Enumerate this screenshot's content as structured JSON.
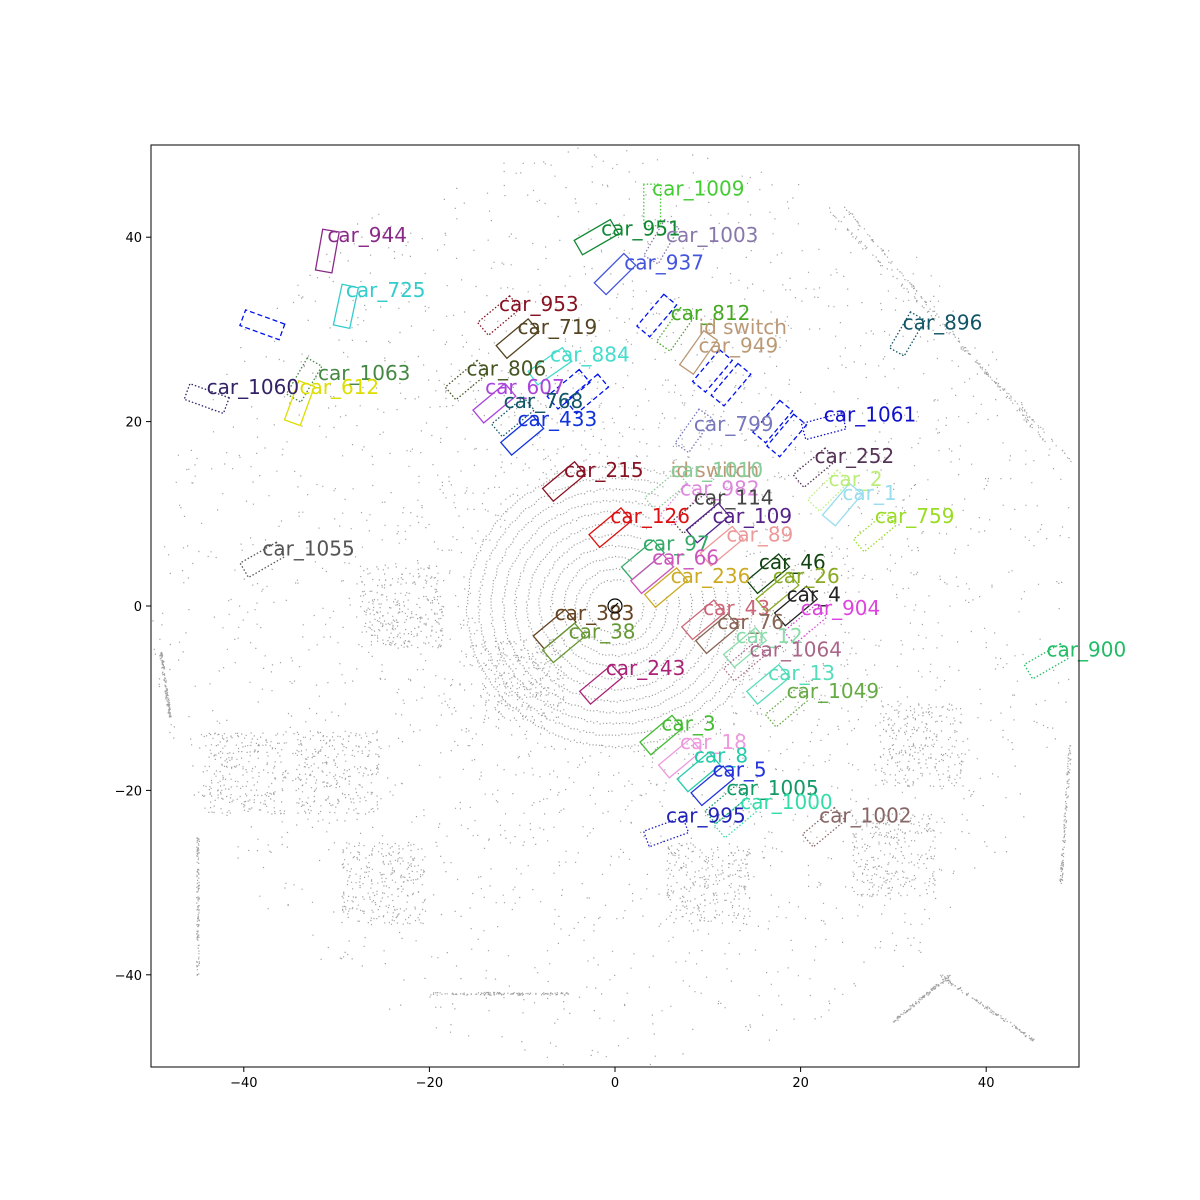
{
  "chart_data": {
    "type": "scatter",
    "title": "",
    "xlabel": "",
    "ylabel": "",
    "xlim": [
      -50,
      50
    ],
    "ylim": [
      -50,
      50
    ],
    "x_ticks": [
      -40,
      -20,
      0,
      20,
      40
    ],
    "y_ticks": [
      -40,
      -20,
      0,
      20,
      40
    ],
    "x_tick_labels": [
      "−40",
      "−20",
      "0",
      "20",
      "40"
    ],
    "y_tick_labels": [
      "−40",
      "−20",
      "0",
      "20",
      "40"
    ],
    "grid": false,
    "point_color": "#555555",
    "ego_marker": {
      "x": 0,
      "y": 0
    },
    "boxes": [
      {
        "label": "car_1009",
        "x": 4,
        "y": 43.5,
        "w": 1.8,
        "l": 4.5,
        "angle": 90,
        "color": "#44cc33",
        "style": "dotted"
      },
      {
        "label": "car_951",
        "x": -2,
        "y": 40,
        "w": 1.8,
        "l": 4.5,
        "angle": 30,
        "color": "#118833",
        "style": "solid"
      },
      {
        "label": "car_1003",
        "x": 5,
        "y": 39.5,
        "w": 1.8,
        "l": 4.5,
        "angle": 60,
        "color": "#8877aa",
        "style": "dotted"
      },
      {
        "label": "car_944",
        "x": -31,
        "y": 38.5,
        "w": 1.8,
        "l": 4.5,
        "angle": 80,
        "color": "#8a2a88",
        "style": "solid"
      },
      {
        "label": "car_937",
        "x": 0,
        "y": 36,
        "w": 1.8,
        "l": 4.5,
        "angle": 45,
        "color": "#4455dd",
        "style": "solid"
      },
      {
        "label": "car_725",
        "x": -29,
        "y": 32.5,
        "w": 1.8,
        "l": 4.5,
        "angle": 78,
        "color": "#33cccc",
        "style": "solid"
      },
      {
        "label": "",
        "x": -38,
        "y": 30.5,
        "w": 1.8,
        "l": 4.5,
        "angle": -20,
        "color": "#0011ee",
        "style": "dashed"
      },
      {
        "label": "car_953",
        "x": -12.5,
        "y": 31.5,
        "w": 1.8,
        "l": 4.5,
        "angle": 40,
        "color": "#881122",
        "style": "dotted"
      },
      {
        "label": "",
        "x": 4.5,
        "y": 31.5,
        "w": 1.8,
        "l": 4.5,
        "angle": 50,
        "color": "#0011ee",
        "style": "dashed"
      },
      {
        "label": "car_812",
        "x": 6.5,
        "y": 30,
        "w": 1.8,
        "l": 4.5,
        "angle": 55,
        "color": "#44aa22",
        "style": "dotted"
      },
      {
        "label": "car_896",
        "x": 31.5,
        "y": 29.5,
        "w": 1.8,
        "l": 4.5,
        "angle": 60,
        "color": "#115566",
        "style": "dotted"
      },
      {
        "label": "car_719",
        "x": -10.5,
        "y": 29,
        "w": 1.8,
        "l": 4.5,
        "angle": 40,
        "color": "#554422",
        "style": "solid"
      },
      {
        "label": "car_949",
        "x": 9,
        "y": 27.5,
        "w": 1.8,
        "l": 4.5,
        "angle": 55,
        "color": "#bb9977",
        "style": "solid"
      },
      {
        "label": "",
        "x": 10.5,
        "y": 25.5,
        "w": 1.8,
        "l": 4.5,
        "angle": 50,
        "color": "#0011ee",
        "style": "dashed"
      },
      {
        "label": "",
        "x": 12.5,
        "y": 24,
        "w": 1.8,
        "l": 4.5,
        "angle": 50,
        "color": "#0011ee",
        "style": "dashed"
      },
      {
        "label": "car_884",
        "x": -7,
        "y": 26,
        "w": 1.8,
        "l": 4.5,
        "angle": 35,
        "color": "#44ddcc",
        "style": "solid"
      },
      {
        "label": "car_806",
        "x": -16,
        "y": 24.5,
        "w": 1.8,
        "l": 4.5,
        "angle": 40,
        "color": "#445522",
        "style": "dotted"
      },
      {
        "label": "car_1063",
        "x": -33.5,
        "y": 24.5,
        "w": 1.8,
        "l": 4.5,
        "angle": 60,
        "color": "#448844",
        "style": "dotted"
      },
      {
        "label": "car_612",
        "x": -34,
        "y": 22,
        "w": 1.8,
        "l": 4.5,
        "angle": 70,
        "color": "#dddd00",
        "style": "solid"
      },
      {
        "label": "car_1060",
        "x": -44,
        "y": 22.5,
        "w": 1.8,
        "l": 4.5,
        "angle": -20,
        "color": "#332266",
        "style": "dotted"
      },
      {
        "label": "",
        "x": -5,
        "y": 23.5,
        "w": 1.8,
        "l": 4.5,
        "angle": 40,
        "color": "#0011ee",
        "style": "dashed"
      },
      {
        "label": "",
        "x": -3,
        "y": 23,
        "w": 1.8,
        "l": 4.5,
        "angle": 40,
        "color": "#0011ee",
        "style": "dashed"
      },
      {
        "label": "car_607",
        "x": -13,
        "y": 22,
        "w": 1.8,
        "l": 4.5,
        "angle": 40,
        "color": "#aa44dd",
        "style": "solid"
      },
      {
        "label": "car_768",
        "x": -11,
        "y": 20.5,
        "w": 1.8,
        "l": 4.5,
        "angle": 40,
        "color": "#115566",
        "style": "dotted"
      },
      {
        "label": "car_433",
        "x": -10,
        "y": 18.5,
        "w": 1.8,
        "l": 4.5,
        "angle": 40,
        "color": "#1133dd",
        "style": "solid"
      },
      {
        "label": "car_799",
        "x": 8.5,
        "y": 19,
        "w": 1.8,
        "l": 4.5,
        "angle": 55,
        "color": "#7777bb",
        "style": "dotted"
      },
      {
        "label": "",
        "x": 17,
        "y": 20,
        "w": 1.8,
        "l": 4.5,
        "angle": 50,
        "color": "#0011ee",
        "style": "dashed"
      },
      {
        "label": "",
        "x": 18.5,
        "y": 18.5,
        "w": 1.8,
        "l": 4.5,
        "angle": 50,
        "color": "#0011ee",
        "style": "dashed"
      },
      {
        "label": "car_1061",
        "x": 22.5,
        "y": 19.5,
        "w": 1.8,
        "l": 4.5,
        "angle": 15,
        "color": "#1111cc",
        "style": "dotted"
      },
      {
        "label": "car_215",
        "x": -5.5,
        "y": 13.5,
        "w": 1.8,
        "l": 4.5,
        "angle": 40,
        "color": "#881122",
        "style": "solid"
      },
      {
        "label": "car_252",
        "x": 21.5,
        "y": 15,
        "w": 1.8,
        "l": 4.5,
        "angle": 40,
        "color": "#553355",
        "style": "dotted"
      },
      {
        "label": "car_1010",
        "x": 5.5,
        "y": 12.5,
        "w": 1.8,
        "l": 4.5,
        "angle": 40,
        "color": "#88cc99",
        "style": "dotted"
      },
      {
        "label": "car_982",
        "x": 7,
        "y": 11,
        "w": 1.8,
        "l": 4.5,
        "angle": 50,
        "color": "#dd88dd",
        "style": "dotted"
      },
      {
        "label": "car_2",
        "x": 23,
        "y": 12.5,
        "w": 1.8,
        "l": 4.5,
        "angle": 45,
        "color": "#bbee77",
        "style": "dotted"
      },
      {
        "label": "car_1",
        "x": 24.5,
        "y": 11,
        "w": 1.8,
        "l": 4.5,
        "angle": 50,
        "color": "#99ddee",
        "style": "solid"
      },
      {
        "label": "car_114",
        "x": 8.5,
        "y": 10,
        "w": 1.8,
        "l": 4.5,
        "angle": 40,
        "color": "#444444",
        "style": "dotted"
      },
      {
        "label": "car_759",
        "x": 28,
        "y": 8,
        "w": 1.8,
        "l": 4.5,
        "angle": 40,
        "color": "#99dd22",
        "style": "dotted"
      },
      {
        "label": "car_126",
        "x": -0.5,
        "y": 8.5,
        "w": 1.8,
        "l": 4.5,
        "angle": 40,
        "color": "#dd1111",
        "style": "solid"
      },
      {
        "label": "car_109",
        "x": 10,
        "y": 9,
        "w": 1.8,
        "l": 4.5,
        "angle": 40,
        "color": "#552288",
        "style": "solid"
      },
      {
        "label": "car_89",
        "x": 11.5,
        "y": 6.5,
        "w": 1.8,
        "l": 4.5,
        "angle": 40,
        "color": "#ee9999",
        "style": "solid"
      },
      {
        "label": "car_97",
        "x": 3,
        "y": 5,
        "w": 1.8,
        "l": 4.5,
        "angle": 40,
        "color": "#33aa66",
        "style": "solid"
      },
      {
        "label": "car_66",
        "x": 4,
        "y": 3.5,
        "w": 1.8,
        "l": 4.5,
        "angle": 40,
        "color": "#cc55bb",
        "style": "solid"
      },
      {
        "label": "car_46",
        "x": 16.5,
        "y": 3.5,
        "w": 1.8,
        "l": 4.5,
        "angle": 40,
        "color": "#114411",
        "style": "solid"
      },
      {
        "label": "car_236",
        "x": 5.5,
        "y": 2,
        "w": 1.8,
        "l": 4.5,
        "angle": 40,
        "color": "#ccaa22",
        "style": "solid"
      },
      {
        "label": "car_26",
        "x": 17.5,
        "y": 1.5,
        "w": 1.8,
        "l": 4.5,
        "angle": 40,
        "color": "#88aa22",
        "style": "solid"
      },
      {
        "label": "car_4",
        "x": 19.5,
        "y": 0,
        "w": 1.8,
        "l": 4.5,
        "angle": 40,
        "color": "#222222",
        "style": "solid"
      },
      {
        "label": "car_904",
        "x": 20.5,
        "y": -2,
        "w": 1.8,
        "l": 4.5,
        "angle": 40,
        "color": "#dd44dd",
        "style": "dotted"
      },
      {
        "label": "car_43",
        "x": 9.5,
        "y": -1.5,
        "w": 1.8,
        "l": 4.5,
        "angle": 40,
        "color": "#cc6677",
        "style": "solid"
      },
      {
        "label": "car_76",
        "x": 11,
        "y": -3,
        "w": 1.8,
        "l": 4.5,
        "angle": 40,
        "color": "#886655",
        "style": "solid"
      },
      {
        "label": "car_383",
        "x": -6.5,
        "y": -2.5,
        "w": 1.8,
        "l": 4.5,
        "angle": 40,
        "color": "#664422",
        "style": "solid"
      },
      {
        "label": "car_38",
        "x": -5.5,
        "y": -4,
        "w": 1.8,
        "l": 4.5,
        "angle": 40,
        "color": "#669933",
        "style": "solid"
      },
      {
        "label": "car_12",
        "x": 14,
        "y": -4.5,
        "w": 1.8,
        "l": 4.5,
        "angle": 40,
        "color": "#88ddaa",
        "style": "solid"
      },
      {
        "label": "car_1064",
        "x": 14,
        "y": -6,
        "w": 1.8,
        "l": 4.5,
        "angle": 40,
        "color": "#aa6688",
        "style": "dotted"
      },
      {
        "label": "car_900",
        "x": 46.5,
        "y": -6,
        "w": 1.8,
        "l": 4.5,
        "angle": 30,
        "color": "#22bb66",
        "style": "dotted"
      },
      {
        "label": "car_243",
        "x": -1.5,
        "y": -8.5,
        "w": 1.8,
        "l": 4.5,
        "angle": 40,
        "color": "#aa2277",
        "style": "solid"
      },
      {
        "label": "car_13",
        "x": 16.5,
        "y": -8.5,
        "w": 1.8,
        "l": 4.5,
        "angle": 40,
        "color": "#55ddbb",
        "style": "solid"
      },
      {
        "label": "car_1049",
        "x": 18.5,
        "y": -11,
        "w": 1.8,
        "l": 4.5,
        "angle": 40,
        "color": "#66aa44",
        "style": "dotted"
      },
      {
        "label": "car_3",
        "x": 5,
        "y": -14,
        "w": 1.8,
        "l": 4.5,
        "angle": 40,
        "color": "#44bb33",
        "style": "solid"
      },
      {
        "label": "car_18",
        "x": 7,
        "y": -16.5,
        "w": 1.8,
        "l": 4.5,
        "angle": 40,
        "color": "#ee99dd",
        "style": "solid"
      },
      {
        "label": "car_8",
        "x": 9,
        "y": -18,
        "w": 1.8,
        "l": 4.5,
        "angle": 40,
        "color": "#22ccaa",
        "style": "solid"
      },
      {
        "label": "car_5",
        "x": 10.5,
        "y": -19.5,
        "w": 1.8,
        "l": 4.5,
        "angle": 40,
        "color": "#2233dd",
        "style": "solid"
      },
      {
        "label": "car_1005",
        "x": 12,
        "y": -21.5,
        "w": 1.8,
        "l": 4.5,
        "angle": 40,
        "color": "#119966",
        "style": "dotted"
      },
      {
        "label": "car_1000",
        "x": 13,
        "y": -23,
        "w": 1.8,
        "l": 4.5,
        "angle": 40,
        "color": "#33ddaa",
        "style": "dotted"
      },
      {
        "label": "car_995",
        "x": 5.5,
        "y": -24.5,
        "w": 1.8,
        "l": 4.5,
        "angle": 20,
        "color": "#2222bb",
        "style": "dotted"
      },
      {
        "label": "car_1002",
        "x": 22.5,
        "y": -24,
        "w": 1.8,
        "l": 4.5,
        "angle": 40,
        "color": "#886666",
        "style": "dotted"
      },
      {
        "label": "car_1055",
        "x": -38,
        "y": 5,
        "w": 1.8,
        "l": 4.5,
        "angle": 30,
        "color": "#555555",
        "style": "dotted"
      }
    ],
    "annotations": [
      {
        "text": "car_1009",
        "x": 4,
        "y": 44.5,
        "color": "#44cc33"
      },
      {
        "text": "car_951",
        "x": -1.5,
        "y": 40.2,
        "color": "#118833"
      },
      {
        "text": "car_1003",
        "x": 5.5,
        "y": 39.5,
        "color": "#8877aa"
      },
      {
        "text": "car_944",
        "x": -31,
        "y": 39.5,
        "color": "#8a2a88"
      },
      {
        "text": "car_937",
        "x": 1,
        "y": 36.5,
        "color": "#4455dd"
      },
      {
        "text": "car_725",
        "x": -29,
        "y": 33.5,
        "color": "#33cccc"
      },
      {
        "text": "car_953",
        "x": -12.5,
        "y": 32,
        "color": "#881122"
      },
      {
        "text": "car_812",
        "x": 6,
        "y": 31,
        "color": "#44aa22"
      },
      {
        "text": "car_896",
        "x": 31,
        "y": 30,
        "color": "#115566"
      },
      {
        "text": "car_719",
        "x": -10.5,
        "y": 29.5,
        "color": "#554422"
      },
      {
        "text": "id switch",
        "x": 9,
        "y": 29.5,
        "color": "#bb9977"
      },
      {
        "text": "car_949",
        "x": 9,
        "y": 27.5,
        "color": "#bb9977"
      },
      {
        "text": "car_884",
        "x": -7,
        "y": 26.5,
        "color": "#44ddcc"
      },
      {
        "text": "car_806",
        "x": -16,
        "y": 25,
        "color": "#445522"
      },
      {
        "text": "car_1063",
        "x": -32,
        "y": 24.5,
        "color": "#448844"
      },
      {
        "text": "car_607",
        "x": -14,
        "y": 23,
        "color": "#aa44dd"
      },
      {
        "text": "car_612",
        "x": -34,
        "y": 23,
        "color": "#dddd00"
      },
      {
        "text": "car_1060",
        "x": -44,
        "y": 23,
        "color": "#332266"
      },
      {
        "text": "car_768",
        "x": -12,
        "y": 21.5,
        "color": "#115566"
      },
      {
        "text": "car_433",
        "x": -10.5,
        "y": 19.5,
        "color": "#1133dd"
      },
      {
        "text": "car_799",
        "x": 8.5,
        "y": 19,
        "color": "#7777bb"
      },
      {
        "text": "car_1061",
        "x": 22.5,
        "y": 20,
        "color": "#1111cc"
      },
      {
        "text": "car_215",
        "x": -5.5,
        "y": 14,
        "color": "#881122"
      },
      {
        "text": "car_252",
        "x": 21.5,
        "y": 15.5,
        "color": "#553355"
      },
      {
        "text": "id switch",
        "x": 6,
        "y": 14,
        "color": "#bb9977"
      },
      {
        "text": "car_1010",
        "x": 6,
        "y": 14,
        "color": "#88cc99"
      },
      {
        "text": "car_982",
        "x": 7,
        "y": 12,
        "color": "#dd88dd"
      },
      {
        "text": "car_2",
        "x": 23,
        "y": 13,
        "color": "#bbee77"
      },
      {
        "text": "car_114",
        "x": 8.5,
        "y": 11,
        "color": "#444444"
      },
      {
        "text": "car_1",
        "x": 24.5,
        "y": 11.5,
        "color": "#99ddee"
      },
      {
        "text": "car_126",
        "x": -0.5,
        "y": 9,
        "color": "#dd1111"
      },
      {
        "text": "car_109",
        "x": 10.5,
        "y": 9,
        "color": "#552288"
      },
      {
        "text": "car_759",
        "x": 28,
        "y": 9,
        "color": "#99dd22"
      },
      {
        "text": "car_89",
        "x": 12,
        "y": 7,
        "color": "#ee9999"
      },
      {
        "text": "car_97",
        "x": 3,
        "y": 6,
        "color": "#33aa66"
      },
      {
        "text": "car_66",
        "x": 4,
        "y": 4.5,
        "color": "#cc55bb"
      },
      {
        "text": "car_46",
        "x": 15.5,
        "y": 4,
        "color": "#114411"
      },
      {
        "text": "car_236",
        "x": 6,
        "y": 2.5,
        "color": "#ccaa22"
      },
      {
        "text": "car_26",
        "x": 17,
        "y": 2.5,
        "color": "#88aa22"
      },
      {
        "text": "car_4",
        "x": 18.5,
        "y": 0.5,
        "color": "#222222"
      },
      {
        "text": "car_904",
        "x": 20,
        "y": -1,
        "color": "#dd44dd"
      },
      {
        "text": "car_43",
        "x": 9.5,
        "y": -1,
        "color": "#cc6677"
      },
      {
        "text": "car_383",
        "x": -6.5,
        "y": -1.5,
        "color": "#664422"
      },
      {
        "text": "car_76",
        "x": 11,
        "y": -2.5,
        "color": "#886655"
      },
      {
        "text": "car_38",
        "x": -5,
        "y": -3.5,
        "color": "#669933"
      },
      {
        "text": "car_12",
        "x": 13,
        "y": -4,
        "color": "#88ddaa"
      },
      {
        "text": "car_1064",
        "x": 14.5,
        "y": -5.5,
        "color": "#aa6688"
      },
      {
        "text": "car_900",
        "x": 46.5,
        "y": -5.5,
        "color": "#22bb66"
      },
      {
        "text": "car_243",
        "x": -1,
        "y": -7.5,
        "color": "#aa2277"
      },
      {
        "text": "car_13",
        "x": 16.5,
        "y": -8,
        "color": "#55ddbb"
      },
      {
        "text": "car_1049",
        "x": 18.5,
        "y": -10,
        "color": "#66aa44"
      },
      {
        "text": "car_3",
        "x": 5,
        "y": -13.5,
        "color": "#44bb33"
      },
      {
        "text": "car_18",
        "x": 7,
        "y": -15.5,
        "color": "#ee99dd"
      },
      {
        "text": "car_8",
        "x": 8.5,
        "y": -17,
        "color": "#22ccaa"
      },
      {
        "text": "car_5",
        "x": 10.5,
        "y": -18.5,
        "color": "#2233dd"
      },
      {
        "text": "car_1005",
        "x": 12,
        "y": -20.5,
        "color": "#119966"
      },
      {
        "text": "car_1000",
        "x": 13.5,
        "y": -22,
        "color": "#33ddaa"
      },
      {
        "text": "car_1002",
        "x": 22,
        "y": -23.5,
        "color": "#886666"
      },
      {
        "text": "car_995",
        "x": 5.5,
        "y": -23.5,
        "color": "#2222bb"
      },
      {
        "text": "car_1055",
        "x": -38,
        "y": 5.5,
        "color": "#555555"
      }
    ]
  }
}
